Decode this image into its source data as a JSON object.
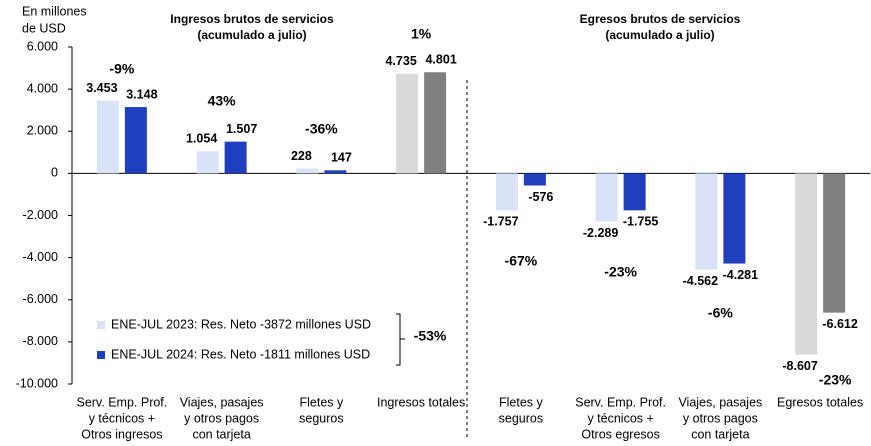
{
  "chart_data": {
    "type": "bar",
    "y_axis_label": [
      "En millones",
      "de USD"
    ],
    "section_titles": [
      [
        "Ingresos brutos de servicios",
        "(acumulado a julio)"
      ],
      [
        "Egresos brutos de servicios",
        "(acumulado a julio)"
      ]
    ],
    "categories": [
      [
        "Serv. Emp. Prof.",
        "y técnicos +",
        "Otros ingresos"
      ],
      [
        "Viajes, pasajes",
        "y otros pagos",
        "con tarjeta"
      ],
      [
        "Fletes y",
        "seguros"
      ],
      [
        "Ingresos totales"
      ],
      [
        "Fletes y",
        "seguros"
      ],
      [
        "Serv. Emp. Prof.",
        "y técnicos +",
        "Otros egresos"
      ],
      [
        "Viajes, pasajes",
        "y otros pagos",
        "con tarjeta"
      ],
      [
        "Egresos totales"
      ]
    ],
    "series": [
      {
        "name": "ENE-JUL 2023: Res. Neto -3872 millones USD",
        "color": "#d9e2f7",
        "colors": [
          "#d9e2f7",
          "#d9e2f7",
          "#d9e2f7",
          "#d9d9d9",
          "#d9e2f7",
          "#d9e2f7",
          "#d9e2f7",
          "#d9d9d9"
        ],
        "values": [
          3453,
          1054,
          228,
          4735,
          -1757,
          -2289,
          -4562,
          -8607
        ],
        "value_labels": [
          "3.453",
          "1.054",
          "228",
          "4.735",
          "-1.757",
          "-2.289",
          "-4.562",
          "-8.607"
        ]
      },
      {
        "name": "ENE-JUL 2024: Res. Neto -1811 millones USD",
        "color": "#1f3fbf",
        "colors": [
          "#1f3fbf",
          "#1f3fbf",
          "#1f3fbf",
          "#808080",
          "#1f3fbf",
          "#1f3fbf",
          "#1f3fbf",
          "#808080"
        ],
        "values": [
          3148,
          1507,
          147,
          4801,
          -576,
          -1755,
          -4281,
          -6612
        ],
        "value_labels": [
          "3.148",
          "1.507",
          "147",
          "4.801",
          "-576",
          "-1.755",
          "-4.281",
          "-6.612"
        ]
      }
    ],
    "change_labels": [
      "-9%",
      "43%",
      "-36%",
      "1%",
      "-67%",
      "-23%",
      "-6%",
      "-23%"
    ],
    "change_colors": [
      "#ff0000",
      "#00b050",
      "#ff0000",
      "#00b050",
      "#ff0000",
      "#ff0000",
      "#ff0000",
      "#ff0000"
    ],
    "net_change_label": "-53%",
    "net_change_color": "#ff0000",
    "ylim": [
      -10000,
      6000
    ],
    "yticks": [
      {
        "value": 6000,
        "label": "6.000"
      },
      {
        "value": 4000,
        "label": "4.000"
      },
      {
        "value": 2000,
        "label": "2.000"
      },
      0,
      {
        "value": -2000,
        "label": "-2.000"
      },
      {
        "value": -4000,
        "label": "-4.000"
      },
      {
        "value": -6000,
        "label": "-6.000"
      },
      {
        "value": -8000,
        "label": "-8.000"
      },
      {
        "value": -10000,
        "label": "-10.000"
      }
    ]
  }
}
